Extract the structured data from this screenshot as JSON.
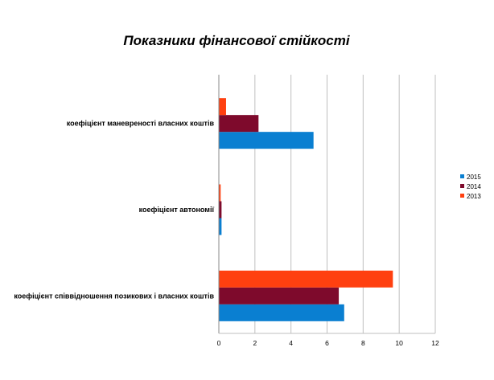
{
  "chart_data": {
    "type": "bar",
    "orientation": "horizontal",
    "title": "Показники фінансової стійкості",
    "categories": [
      "коефіцієнт маневреності власних коштів",
      "коефіцієнт автономії",
      "коефіцієнт співвідношення позикових і власних коштів"
    ],
    "series": [
      {
        "name": "2015",
        "color": "#0a7fd1",
        "values": [
          5.25,
          0.15,
          6.95
        ]
      },
      {
        "name": "2014",
        "color": "#7e0a2c",
        "values": [
          2.2,
          0.15,
          6.65
        ]
      },
      {
        "name": "2013",
        "color": "#ff4010",
        "values": [
          0.4,
          0.1,
          9.65
        ]
      }
    ],
    "xlim": [
      0,
      12
    ],
    "xticks": [
      0,
      2,
      4,
      6,
      8,
      10,
      12
    ],
    "grid": true,
    "legend_position": "right",
    "xlabel": "",
    "ylabel": ""
  }
}
